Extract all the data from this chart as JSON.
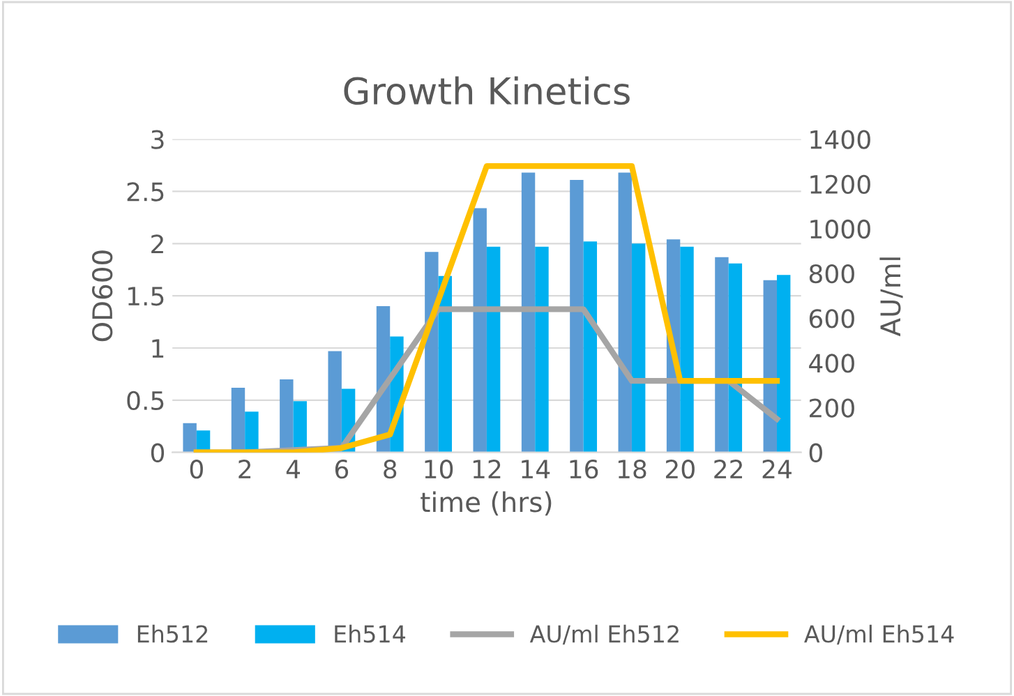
{
  "chart_data": {
    "type": "bar",
    "title": "Growth Kinetics",
    "xlabel": "time (hrs)",
    "ylabel": "OD600",
    "y2label": "AU/ml",
    "categories": [
      "0",
      "2",
      "4",
      "6",
      "8",
      "10",
      "12",
      "14",
      "16",
      "18",
      "20",
      "22",
      "24"
    ],
    "series": [
      {
        "name": "Eh512",
        "color": "#5b9bd5",
        "values": [
          0.28,
          0.62,
          0.7,
          0.97,
          1.4,
          1.92,
          2.34,
          2.68,
          2.61,
          2.68,
          2.04,
          1.87,
          1.65
        ]
      },
      {
        "name": "Eh514",
        "color": "#00b0f0",
        "values": [
          0.21,
          0.39,
          0.49,
          0.61,
          1.11,
          1.69,
          1.97,
          1.97,
          2.02,
          2.0,
          1.97,
          1.81,
          1.7
        ]
      },
      {
        "name": "AU/ml Eh512",
        "type": "line",
        "axis": "y2",
        "color": "#a5a5a5",
        "values": [
          0,
          0,
          10,
          20,
          330,
          640,
          640,
          640,
          640,
          320,
          320,
          320,
          150
        ]
      },
      {
        "name": "AU/ml Eh514",
        "type": "line",
        "axis": "y2",
        "color": "#ffc000",
        "values": [
          0,
          0,
          0,
          20,
          80,
          680,
          1280,
          1280,
          1280,
          1280,
          320,
          320,
          320
        ]
      }
    ],
    "ylim": [
      0,
      3
    ],
    "yticks": [
      0,
      0.5,
      1,
      1.5,
      2,
      2.5,
      3
    ],
    "y2lim": [
      0,
      1400
    ],
    "y2ticks": [
      0,
      200,
      400,
      600,
      800,
      1000,
      1200,
      1400
    ],
    "grid": "y",
    "legend": "bottom",
    "marker": "none",
    "line_style": "solid"
  }
}
